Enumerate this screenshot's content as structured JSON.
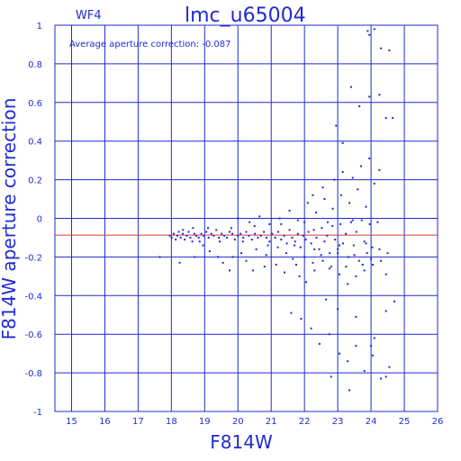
{
  "chart_data": {
    "type": "scatter",
    "title": "lmc_u65004",
    "subtitle": "WF4",
    "annotation": "Average aperture correction: -0.087",
    "xlabel": "F814W",
    "ylabel": "F814W aperture correction",
    "xlim": [
      14.5,
      26
    ],
    "ylim": [
      -1,
      1
    ],
    "x_ticks": [
      15,
      16,
      17,
      18,
      19,
      20,
      21,
      22,
      23,
      24,
      25,
      26
    ],
    "y_ticks": [
      -1,
      -0.8,
      -0.6,
      -0.4,
      -0.2,
      0,
      0.2,
      0.4,
      0.6,
      0.8,
      1
    ],
    "x_tick_labels": [
      "15",
      "16",
      "17",
      "18",
      "19",
      "20",
      "21",
      "22",
      "23",
      "24",
      "25",
      "26"
    ],
    "y_tick_labels": [
      "-1",
      "-0.8",
      "-0.6",
      "-0.4",
      "-0.2",
      "0",
      "0.2",
      "0.4",
      "0.6",
      "0.8",
      "1"
    ],
    "grid": true,
    "reference_line": {
      "y": -0.087,
      "color": "#d93b3b"
    },
    "series": [
      {
        "points": [
          [
            17.65,
            -0.2
          ],
          [
            17.95,
            -0.09
          ],
          [
            18.01,
            -0.1
          ],
          [
            18.07,
            -0.08
          ],
          [
            18.13,
            -0.11
          ],
          [
            18.18,
            -0.09
          ],
          [
            18.22,
            -0.07
          ],
          [
            18.28,
            -0.1
          ],
          [
            18.34,
            -0.08
          ],
          [
            18.4,
            -0.11
          ],
          [
            18.46,
            -0.09
          ],
          [
            18.52,
            -0.07
          ],
          [
            18.57,
            -0.1
          ],
          [
            18.63,
            -0.12
          ],
          [
            18.69,
            -0.08
          ],
          [
            18.75,
            -0.09
          ],
          [
            18.82,
            -0.1
          ],
          [
            18.9,
            -0.08
          ],
          [
            18.97,
            -0.09
          ],
          [
            19.05,
            -0.07
          ],
          [
            19.12,
            -0.1
          ],
          [
            19.2,
            -0.08
          ],
          [
            19.27,
            -0.09
          ],
          [
            19.35,
            -0.06
          ],
          [
            19.43,
            -0.1
          ],
          [
            19.51,
            -0.08
          ],
          [
            19.59,
            -0.09
          ],
          [
            19.67,
            -0.1
          ],
          [
            19.75,
            -0.07
          ],
          [
            19.83,
            -0.08
          ],
          [
            19.91,
            -0.11
          ],
          [
            20.0,
            -0.09
          ],
          [
            20.08,
            -0.08
          ],
          [
            20.16,
            -0.1
          ],
          [
            20.25,
            -0.07
          ],
          [
            20.33,
            -0.09
          ],
          [
            20.42,
            -0.11
          ],
          [
            20.51,
            -0.08
          ],
          [
            20.6,
            -0.1
          ],
          [
            20.69,
            -0.09
          ],
          [
            20.78,
            -0.07
          ],
          [
            20.86,
            -0.1
          ],
          [
            20.95,
            -0.12
          ],
          [
            21.03,
            -0.08
          ],
          [
            21.12,
            -0.1
          ],
          [
            21.21,
            -0.07
          ],
          [
            21.3,
            -0.11
          ],
          [
            21.39,
            -0.09
          ],
          [
            21.47,
            -0.13
          ],
          [
            21.55,
            -0.06
          ],
          [
            21.63,
            -0.1
          ],
          [
            21.72,
            -0.12
          ],
          [
            21.8,
            -0.08
          ],
          [
            21.88,
            -0.15
          ],
          [
            21.96,
            -0.09
          ],
          [
            22.04,
            -0.11
          ],
          [
            22.12,
            -0.07
          ],
          [
            22.2,
            -0.13
          ],
          [
            22.28,
            -0.06
          ],
          [
            22.36,
            -0.1
          ],
          [
            22.44,
            -0.16
          ],
          [
            22.52,
            -0.05
          ],
          [
            22.6,
            -0.12
          ],
          [
            22.68,
            -0.09
          ],
          [
            22.76,
            -0.18
          ],
          [
            22.84,
            -0.04
          ],
          [
            22.92,
            -0.11
          ],
          [
            23.0,
            -0.16
          ],
          [
            23.08,
            -0.03
          ],
          [
            23.16,
            -0.13
          ],
          [
            23.24,
            -0.08
          ],
          [
            23.32,
            -0.2
          ],
          [
            23.4,
            -0.02
          ],
          [
            23.48,
            -0.14
          ],
          [
            23.56,
            -0.07
          ],
          [
            23.64,
            -0.22
          ],
          [
            23.72,
            -0.01
          ],
          [
            23.8,
            -0.12
          ],
          [
            23.88,
            -0.18
          ],
          [
            23.96,
            -0.03
          ],
          [
            24.04,
            -0.15
          ],
          [
            18.25,
            -0.23
          ],
          [
            18.7,
            -0.2
          ],
          [
            18.95,
            -0.14
          ],
          [
            19.4,
            -0.2
          ],
          [
            19.75,
            -0.27
          ],
          [
            20.1,
            -0.18
          ],
          [
            20.45,
            -0.27
          ],
          [
            20.8,
            -0.25
          ],
          [
            21.15,
            -0.24
          ],
          [
            21.4,
            -0.28
          ],
          [
            21.65,
            -0.21
          ],
          [
            21.85,
            -0.3
          ],
          [
            22.05,
            -0.33
          ],
          [
            22.3,
            -0.27
          ],
          [
            22.55,
            -0.22
          ],
          [
            22.8,
            -0.25
          ],
          [
            23.05,
            -0.29
          ],
          [
            23.3,
            -0.34
          ],
          [
            23.55,
            -0.3
          ],
          [
            23.8,
            -0.27
          ],
          [
            24.05,
            -0.24
          ],
          [
            24.3,
            -0.22
          ],
          [
            24.45,
            -0.29
          ],
          [
            20.0,
            0.0
          ],
          [
            20.35,
            -0.02
          ],
          [
            20.65,
            0.01
          ],
          [
            20.95,
            -0.03
          ],
          [
            21.25,
            0.0
          ],
          [
            21.55,
            0.04
          ],
          [
            21.8,
            -0.01
          ],
          [
            22.1,
            0.08
          ],
          [
            22.35,
            0.03
          ],
          [
            22.6,
            0.1
          ],
          [
            22.85,
            0.05
          ],
          [
            23.1,
            0.12
          ],
          [
            23.35,
            0.08
          ],
          [
            23.6,
            0.15
          ],
          [
            23.85,
            0.06
          ],
          [
            24.1,
            0.18
          ],
          [
            22.25,
            0.12
          ],
          [
            22.55,
            0.16
          ],
          [
            22.9,
            0.2
          ],
          [
            23.15,
            0.24
          ],
          [
            23.45,
            0.21
          ],
          [
            23.7,
            0.27
          ],
          [
            23.95,
            0.31
          ],
          [
            24.25,
            0.25
          ],
          [
            22.95,
            0.48
          ],
          [
            23.15,
            0.39
          ],
          [
            23.4,
            0.68
          ],
          [
            23.65,
            0.58
          ],
          [
            23.95,
            0.63
          ],
          [
            24.25,
            0.64
          ],
          [
            24.45,
            0.52
          ],
          [
            24.55,
            0.87
          ],
          [
            23.9,
            0.97
          ],
          [
            23.95,
            0.95
          ],
          [
            24.1,
            0.98
          ],
          [
            24.3,
            0.88
          ],
          [
            24.65,
            0.52
          ],
          [
            21.6,
            -0.49
          ],
          [
            21.9,
            -0.52
          ],
          [
            22.2,
            -0.57
          ],
          [
            22.45,
            -0.65
          ],
          [
            22.75,
            -0.6
          ],
          [
            23.05,
            -0.7
          ],
          [
            23.3,
            -0.74
          ],
          [
            23.55,
            -0.66
          ],
          [
            23.8,
            -0.79
          ],
          [
            24.05,
            -0.71
          ],
          [
            24.3,
            -0.83
          ],
          [
            24.55,
            -0.77
          ],
          [
            24.1,
            -0.62
          ],
          [
            24.45,
            -0.48
          ],
          [
            24.7,
            -0.43
          ],
          [
            22.8,
            -0.82
          ],
          [
            23.35,
            -0.89
          ],
          [
            24.0,
            -0.66
          ],
          [
            24.45,
            -0.82
          ],
          [
            22.65,
            -0.42
          ],
          [
            23.0,
            -0.47
          ],
          [
            23.55,
            -0.51
          ],
          [
            19.15,
            -0.17
          ],
          [
            19.55,
            -0.23
          ],
          [
            19.85,
            -0.2
          ],
          [
            20.25,
            -0.22
          ],
          [
            20.55,
            -0.16
          ],
          [
            20.85,
            -0.19
          ],
          [
            21.2,
            -0.15
          ],
          [
            21.45,
            -0.18
          ],
          [
            21.75,
            -0.24
          ],
          [
            22.0,
            -0.2
          ],
          [
            22.25,
            -0.23
          ],
          [
            22.5,
            -0.19
          ],
          [
            22.75,
            -0.26
          ],
          [
            23.0,
            -0.18
          ],
          [
            23.25,
            -0.25
          ],
          [
            23.5,
            -0.19
          ],
          [
            23.75,
            -0.24
          ],
          [
            24.0,
            -0.21
          ],
          [
            24.25,
            -0.16
          ],
          [
            24.5,
            -0.18
          ],
          [
            18.35,
            -0.06
          ],
          [
            18.65,
            -0.05
          ],
          [
            18.85,
            -0.12
          ],
          [
            19.1,
            -0.05
          ],
          [
            19.45,
            -0.12
          ],
          [
            19.8,
            -0.05
          ],
          [
            20.15,
            -0.12
          ],
          [
            20.5,
            -0.04
          ],
          [
            20.9,
            -0.14
          ],
          [
            21.3,
            -0.03
          ],
          [
            21.7,
            -0.14
          ],
          [
            22.0,
            -0.02
          ],
          [
            22.3,
            -0.16
          ],
          [
            22.7,
            -0.02
          ],
          [
            23.05,
            -0.14
          ],
          [
            23.45,
            -0.01
          ],
          [
            23.85,
            -0.13
          ],
          [
            24.2,
            -0.02
          ]
        ]
      }
    ]
  }
}
